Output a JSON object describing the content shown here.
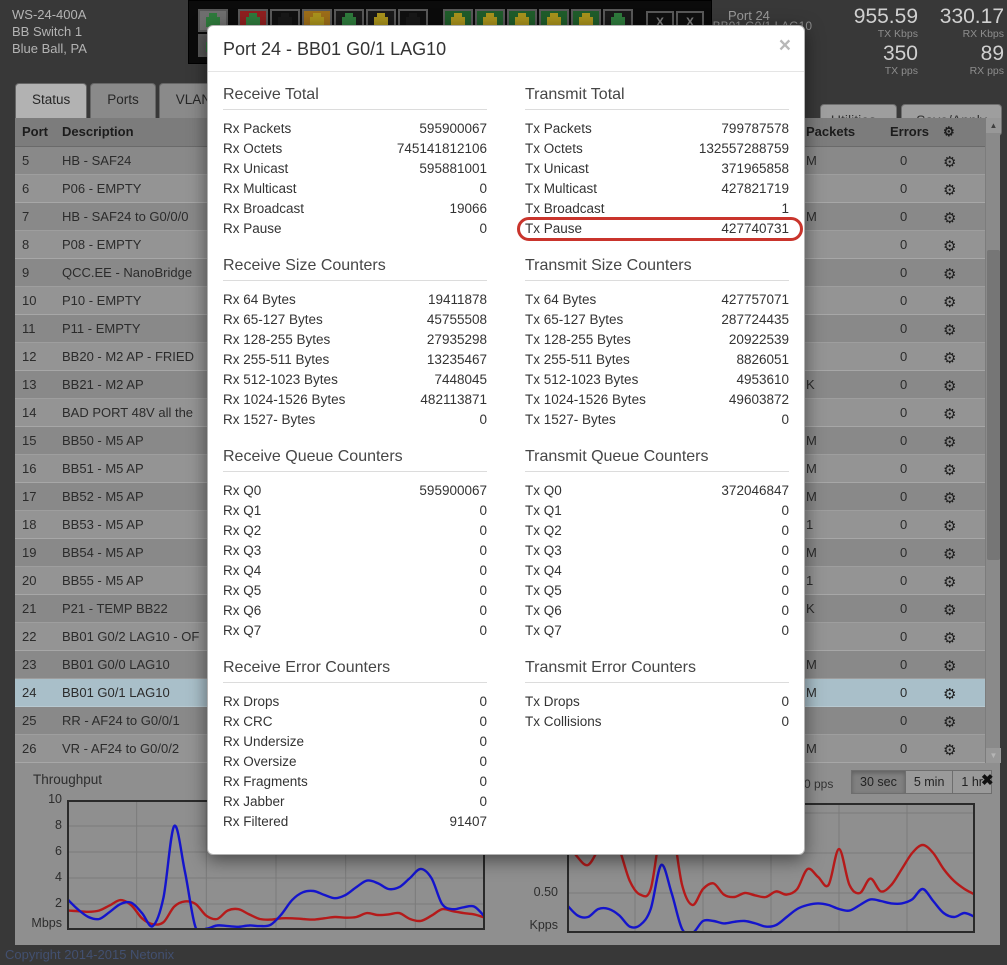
{
  "header": {
    "model": "WS-24-400A",
    "name": "BB Switch 1",
    "location": "Blue Ball, PA",
    "port_label": "Port 24",
    "port_sub": "BB01 G0/1 LAG10",
    "stats": {
      "tx_kbps": "955.59",
      "tx_kbps_label": "TX Kbps",
      "rx_kbps": "330.17",
      "rx_kbps_label": "RX Kbps",
      "tx_pps": "350",
      "tx_pps_label": "TX pps",
      "rx_pps": "89",
      "rx_pps_label": "RX pps"
    },
    "switch_panel": {
      "pair": [
        {
          "bg": "#6f6f6f",
          "jack": "#2e7a3c"
        },
        {
          "bg": "#555555",
          "jack": "#2e7a3c"
        }
      ],
      "row": [
        {
          "bg": "#8f1f1f",
          "jack": "#2e7a3c"
        },
        {
          "bg": "#101010",
          "jack": "#181818"
        },
        {
          "bg": "#9c6d18",
          "jack": "#a8921c"
        },
        {
          "bg": "#1a1a1a",
          "jack": "#2e7a3c"
        },
        {
          "bg": "#1a1a1a",
          "jack": "#a8921c"
        },
        {
          "bg": "#101010",
          "jack": "#181818"
        },
        {
          "bg": "#1f5c2a",
          "jack": "#a8921c"
        },
        {
          "bg": "#1f5c2a",
          "jack": "#a8921c"
        },
        {
          "bg": "#1f5c2a",
          "jack": "#a8921c"
        },
        {
          "bg": "#1f5c2a",
          "jack": "#a8921c"
        },
        {
          "bg": "#1f5c2a",
          "jack": "#a8921c"
        },
        {
          "bg": "#1a1a1a",
          "jack": "#2e7a3c"
        }
      ],
      "sfp": [
        "X",
        "X"
      ]
    }
  },
  "toolbar": {
    "utilities_label": "Utilities",
    "save_label": "Save/Apply"
  },
  "tabs": [
    {
      "label": "Status",
      "active": true
    },
    {
      "label": "Ports"
    },
    {
      "label": "VLANs"
    },
    {
      "label": "",
      "partial": true
    }
  ],
  "table": {
    "headers": {
      "port": "Port",
      "description": "Description",
      "packets": "Packets",
      "errors": "Errors"
    },
    "selected_port": 24,
    "rows": [
      {
        "port": 5,
        "desc": "HB - SAF24",
        "pkt": "M",
        "err": "0"
      },
      {
        "port": 6,
        "desc": "P06 - EMPTY",
        "pkt": "",
        "err": "0"
      },
      {
        "port": 7,
        "desc": "HB - SAF24 to G0/0/0",
        "pkt": "M",
        "err": "0"
      },
      {
        "port": 8,
        "desc": "P08 - EMPTY",
        "pkt": "",
        "err": "0"
      },
      {
        "port": 9,
        "desc": "QCC.EE - NanoBridge",
        "pkt": "",
        "err": "0"
      },
      {
        "port": 10,
        "desc": "P10 - EMPTY",
        "pkt": "",
        "err": "0"
      },
      {
        "port": 11,
        "desc": "P11 - EMPTY",
        "pkt": "",
        "err": "0"
      },
      {
        "port": 12,
        "desc": "BB20 - M2 AP - FRIED",
        "pkt": "",
        "err": "0"
      },
      {
        "port": 13,
        "desc": "BB21 - M2 AP",
        "pkt": "K",
        "err": "0"
      },
      {
        "port": 14,
        "desc": "BAD PORT 48V all the",
        "pkt": "",
        "err": "0"
      },
      {
        "port": 15,
        "desc": "BB50 - M5 AP",
        "pkt": "M",
        "err": "0"
      },
      {
        "port": 16,
        "desc": "BB51 - M5 AP",
        "pkt": "M",
        "err": "0"
      },
      {
        "port": 17,
        "desc": "BB52 - M5 AP",
        "pkt": "M",
        "err": "0"
      },
      {
        "port": 18,
        "desc": "BB53 - M5 AP",
        "pkt": "1",
        "err": "0"
      },
      {
        "port": 19,
        "desc": "BB54 - M5 AP",
        "pkt": "M",
        "err": "0"
      },
      {
        "port": 20,
        "desc": "BB55 - M5 AP",
        "pkt": "1",
        "err": "0"
      },
      {
        "port": 21,
        "desc": "P21 - TEMP BB22",
        "pkt": "K",
        "err": "0"
      },
      {
        "port": 22,
        "desc": "BB01 G0/2 LAG10 - OF",
        "pkt": "",
        "err": "0"
      },
      {
        "port": 23,
        "desc": "BB01 G0/0 LAG10",
        "pkt": "M",
        "err": "0"
      },
      {
        "port": 24,
        "desc": "BB01 G0/1 LAG10",
        "pkt": "M",
        "err": "0"
      },
      {
        "port": 25,
        "desc": "RR - AF24 to G0/0/1",
        "pkt": "",
        "err": "0"
      },
      {
        "port": 26,
        "desc": "VR - AF24 to G0/0/2",
        "pkt": "M",
        "err": "0"
      }
    ]
  },
  "modal": {
    "title": "Port 24 - BB01 G0/1 LAG10",
    "close_label": "×",
    "highlight": {
      "section": "Transmit Total",
      "label": "Tx Pause",
      "color": "#c9342c"
    },
    "columns": [
      [
        {
          "title": "Receive Total",
          "rows": [
            [
              "Rx Packets",
              "595900067"
            ],
            [
              "Rx Octets",
              "745141812106"
            ],
            [
              "Rx Unicast",
              "595881001"
            ],
            [
              "Rx Multicast",
              "0"
            ],
            [
              "Rx Broadcast",
              "19066"
            ],
            [
              "Rx Pause",
              "0"
            ]
          ]
        },
        {
          "title": "Receive Size Counters",
          "rows": [
            [
              "Rx 64 Bytes",
              "19411878"
            ],
            [
              "Rx 65-127 Bytes",
              "45755508"
            ],
            [
              "Rx 128-255 Bytes",
              "27935298"
            ],
            [
              "Rx 255-511 Bytes",
              "13235467"
            ],
            [
              "Rx 512-1023 Bytes",
              "7448045"
            ],
            [
              "Rx 1024-1526 Bytes",
              "482113871"
            ],
            [
              "Rx 1527- Bytes",
              "0"
            ]
          ]
        },
        {
          "title": "Receive Queue Counters",
          "rows": [
            [
              "Rx Q0",
              "595900067"
            ],
            [
              "Rx Q1",
              "0"
            ],
            [
              "Rx Q2",
              "0"
            ],
            [
              "Rx Q3",
              "0"
            ],
            [
              "Rx Q4",
              "0"
            ],
            [
              "Rx Q5",
              "0"
            ],
            [
              "Rx Q6",
              "0"
            ],
            [
              "Rx Q7",
              "0"
            ]
          ]
        },
        {
          "title": "Receive Error Counters",
          "rows": [
            [
              "Rx Drops",
              "0"
            ],
            [
              "Rx CRC",
              "0"
            ],
            [
              "Rx Undersize",
              "0"
            ],
            [
              "Rx Oversize",
              "0"
            ],
            [
              "Rx Fragments",
              "0"
            ],
            [
              "Rx Jabber",
              "0"
            ],
            [
              "Rx Filtered",
              "91407"
            ]
          ]
        }
      ],
      [
        {
          "title": "Transmit Total",
          "rows": [
            [
              "Tx Packets",
              "799787578"
            ],
            [
              "Tx Octets",
              "132557288759"
            ],
            [
              "Tx Unicast",
              "371965858"
            ],
            [
              "Tx Multicast",
              "427821719"
            ],
            [
              "Tx Broadcast",
              "1"
            ],
            [
              "Tx Pause",
              "427740731"
            ]
          ]
        },
        {
          "title": "Transmit Size Counters",
          "rows": [
            [
              "Tx 64 Bytes",
              "427757071"
            ],
            [
              "Tx 65-127 Bytes",
              "287724435"
            ],
            [
              "Tx 128-255 Bytes",
              "20922539"
            ],
            [
              "Tx 255-511 Bytes",
              "8826051"
            ],
            [
              "Tx 512-1023 Bytes",
              "4953610"
            ],
            [
              "Tx 1024-1526 Bytes",
              "49603872"
            ],
            [
              "Tx 1527- Bytes",
              "0"
            ]
          ]
        },
        {
          "title": "Transmit Queue Counters",
          "rows": [
            [
              "Tx Q0",
              "372046847"
            ],
            [
              "Tx Q1",
              "0"
            ],
            [
              "Tx Q2",
              "0"
            ],
            [
              "Tx Q3",
              "0"
            ],
            [
              "Tx Q4",
              "0"
            ],
            [
              "Tx Q5",
              "0"
            ],
            [
              "Tx Q6",
              "0"
            ],
            [
              "Tx Q7",
              "0"
            ]
          ]
        },
        {
          "title": "Transmit Error Counters",
          "rows": [
            [
              "Tx Drops",
              "0"
            ],
            [
              "Tx Collisions",
              "0"
            ]
          ]
        }
      ]
    ]
  },
  "charts_toolbar": {
    "pps_partial": "0 pps",
    "ranges": [
      "30 sec",
      "5 min",
      "1 hr"
    ],
    "active_range": "30 sec",
    "close_icon": "✖"
  },
  "chart_data": [
    {
      "type": "line",
      "title": "Throughput",
      "unit": "Mbps",
      "ylim": [
        0,
        10
      ],
      "yticks": [
        10,
        8,
        6,
        4,
        2
      ],
      "ytick_labels": [
        "10",
        "8",
        "6",
        "4",
        "2"
      ],
      "grid": true,
      "x_divisions": 6,
      "series": [
        {
          "name": "rx",
          "color": "#b51a1a",
          "values": [
            1.5,
            1.45,
            1.4,
            1.5,
            1.9,
            2.3,
            1.9,
            0.9,
            0.45,
            0.6,
            1.8,
            2.2,
            2.0,
            1.1,
            0.85,
            1.5,
            1.6,
            1.2,
            0.85,
            0.8,
            0.9,
            0.9,
            0.85,
            0.8,
            0.9,
            1.0,
            0.95,
            1.0,
            1.3,
            1.15,
            1.2,
            1.3,
            0.85,
            0.7,
            1.1,
            1.6,
            1.45,
            1.3,
            1.2,
            0.95
          ]
        },
        {
          "name": "tx",
          "color": "#1414cc",
          "values": [
            2.4,
            1.6,
            1.0,
            0.85,
            1.4,
            2.0,
            2.1,
            1.3,
            0.3,
            2.5,
            8.0,
            4.5,
            0.2,
            0.1,
            0.35,
            0.3,
            0.25,
            0.35,
            0.3,
            0.4,
            1.2,
            2.3,
            2.9,
            3.0,
            2.7,
            2.45,
            2.7,
            3.3,
            3.8,
            3.6,
            3.15,
            3.3,
            4.0,
            4.7,
            4.0,
            2.0,
            1.6,
            1.75,
            1.8,
            1.0
          ]
        }
      ]
    },
    {
      "type": "line",
      "title": "",
      "unit": "Kpps",
      "ylim": [
        0,
        1.625
      ],
      "yticks": [
        0.5
      ],
      "ytick_labels": [
        "0.50"
      ],
      "grid": true,
      "x_divisions": 6,
      "series": [
        {
          "name": "rx",
          "color": "#b51a1a",
          "values": [
            1.15,
            0.95,
            0.85,
            1.05,
            1.3,
            1.05,
            0.65,
            0.48,
            0.55,
            1.3,
            1.35,
            0.6,
            0.35,
            0.55,
            0.62,
            0.48,
            0.45,
            0.5,
            0.47,
            0.45,
            0.52,
            0.48,
            0.55,
            0.8,
            0.7,
            0.6,
            1.05,
            0.6,
            0.5,
            0.68,
            0.52,
            0.6,
            0.8,
            1.0,
            1.1,
            1.0,
            0.8,
            0.65,
            0.55,
            0.48
          ]
        },
        {
          "name": "tx",
          "color": "#1414cc",
          "values": [
            0.35,
            0.22,
            0.2,
            0.3,
            0.3,
            0.22,
            0.08,
            0.1,
            0.3,
            0.85,
            0.5,
            0.05,
            0.0,
            0.15,
            0.15,
            0.12,
            0.14,
            0.15,
            0.12,
            0.08,
            0.1,
            0.2,
            0.3,
            0.35,
            0.37,
            0.35,
            0.3,
            0.28,
            0.35,
            0.42,
            0.4,
            0.37,
            0.37,
            0.42,
            0.55,
            0.4,
            0.25,
            0.2,
            0.25,
            0.2
          ]
        }
      ]
    }
  ],
  "footer": {
    "copyright": "Copyright 2014-2015 Netonix"
  },
  "icons": {
    "caret": "▾",
    "scroll_up": "▲",
    "scroll_down": "▼",
    "gear": "⚙"
  }
}
